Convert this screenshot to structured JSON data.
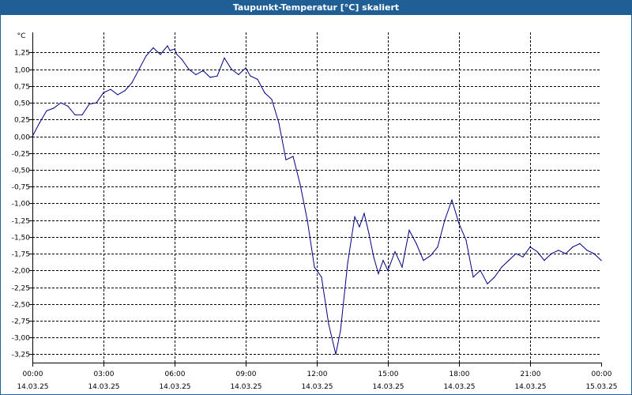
{
  "window": {
    "title": "Taupunkt-Temperatur [°C] skaliert"
  },
  "chart_data": {
    "type": "line",
    "title": "Taupunkt-Temperatur [°C] skaliert",
    "unit_label": "°C",
    "xlabel": "",
    "ylabel": "°C",
    "x_ticks": [
      {
        "time": "00:00",
        "date": "14.03.25",
        "hour": 0
      },
      {
        "time": "03:00",
        "date": "14.03.25",
        "hour": 3
      },
      {
        "time": "06:00",
        "date": "14.03.25",
        "hour": 6
      },
      {
        "time": "09:00",
        "date": "14.03.25",
        "hour": 9
      },
      {
        "time": "12:00",
        "date": "14.03.25",
        "hour": 12
      },
      {
        "time": "15:00",
        "date": "14.03.25",
        "hour": 15
      },
      {
        "time": "18:00",
        "date": "14.03.25",
        "hour": 18
      },
      {
        "time": "21:00",
        "date": "14.03.25",
        "hour": 21
      },
      {
        "time": "00:00",
        "date": "15.03.25",
        "hour": 24
      }
    ],
    "y_ticks": [
      "1,25",
      "1,00",
      "0,75",
      "0,50",
      "0,25",
      "0,00",
      "-0,25",
      "-0,50",
      "-0,75",
      "-1,00",
      "-1,25",
      "-1,50",
      "-1,75",
      "-2,00",
      "-2,25",
      "-2,50",
      "-2,75",
      "-3,00",
      "-3,25"
    ],
    "y_tick_values": [
      1.25,
      1.0,
      0.75,
      0.5,
      0.25,
      0,
      -0.25,
      -0.5,
      -0.75,
      -1.0,
      -1.25,
      -1.5,
      -1.75,
      -2.0,
      -2.25,
      -2.5,
      -2.75,
      -3.0,
      -3.25
    ],
    "xlim": [
      0,
      24
    ],
    "ylim": [
      -3.375,
      1.55
    ],
    "grid": true,
    "line_color": "#000080",
    "series": [
      {
        "x": [
          0,
          0.3,
          0.6,
          0.9,
          1.2,
          1.5,
          1.8,
          2.1,
          2.4,
          2.7,
          3.0,
          3.3,
          3.6,
          3.9,
          4.2,
          4.5,
          4.8,
          5.1,
          5.4,
          5.7,
          5.8,
          6.0,
          6.1,
          6.3,
          6.6,
          6.9,
          7.2,
          7.5,
          7.8,
          8.1,
          8.4,
          8.7,
          9.0,
          9.2,
          9.5,
          9.8,
          10.1,
          10.4,
          10.7,
          11.0,
          11.3,
          11.6,
          11.9,
          12.2,
          12.5,
          12.8,
          13.0,
          13.3,
          13.6,
          13.8,
          14.0,
          14.2,
          14.4,
          14.6,
          14.8,
          15.0,
          15.3,
          15.6,
          15.9,
          16.2,
          16.5,
          16.8,
          17.1,
          17.4,
          17.7,
          18.0,
          18.3,
          18.6,
          18.9,
          19.2,
          19.5,
          19.8,
          20.1,
          20.4,
          20.7,
          21.0,
          21.3,
          21.6,
          21.9,
          22.2,
          22.5,
          22.8,
          23.1,
          23.4,
          23.7,
          24.0
        ],
        "y": [
          0.0,
          0.2,
          0.38,
          0.42,
          0.5,
          0.45,
          0.32,
          0.32,
          0.48,
          0.5,
          0.65,
          0.7,
          0.62,
          0.68,
          0.8,
          1.0,
          1.2,
          1.32,
          1.22,
          1.35,
          1.28,
          1.3,
          1.22,
          1.15,
          1.0,
          0.92,
          0.98,
          0.88,
          0.9,
          1.17,
          1.0,
          0.92,
          1.02,
          0.9,
          0.85,
          0.65,
          0.55,
          0.2,
          -0.35,
          -0.3,
          -0.72,
          -1.25,
          -1.95,
          -2.1,
          -2.8,
          -3.25,
          -2.9,
          -1.9,
          -1.2,
          -1.35,
          -1.15,
          -1.45,
          -1.8,
          -2.05,
          -1.85,
          -2.0,
          -1.72,
          -1.95,
          -1.4,
          -1.6,
          -1.85,
          -1.78,
          -1.65,
          -1.25,
          -0.95,
          -1.3,
          -1.55,
          -2.1,
          -2.0,
          -2.2,
          -2.1,
          -1.95,
          -1.85,
          -1.75,
          -1.8,
          -1.65,
          -1.72,
          -1.85,
          -1.75,
          -1.7,
          -1.75,
          -1.65,
          -1.6,
          -1.7,
          -1.75,
          -1.85
        ],
        "values_note": ""
      }
    ]
  }
}
